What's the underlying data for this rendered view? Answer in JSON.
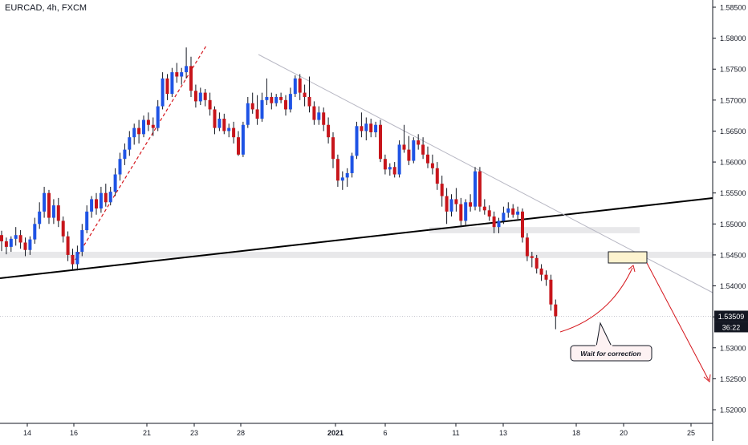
{
  "header": {
    "title": "EURCAD, 4h, FXCM"
  },
  "chart_data": {
    "type": "candlestick",
    "title": "EURCAD, 4h, FXCM",
    "ylim": [
      1.5175,
      1.5875
    ],
    "y_ticks": [
      "1.58500",
      "1.58000",
      "1.57500",
      "1.57000",
      "1.56500",
      "1.56000",
      "1.55500",
      "1.55000",
      "1.54500",
      "1.54000",
      "1.53500",
      "1.53000",
      "1.52500",
      "1.52000"
    ],
    "x_ticks": [
      "14",
      "16",
      "21",
      "23",
      "28",
      "2021",
      "6",
      "11",
      "13",
      "18",
      "20",
      "25"
    ],
    "last_price": {
      "value": "1.53509",
      "countdown": "36:22"
    },
    "annotation": "Wait for correction",
    "colors": {
      "up": "#1e53e5",
      "down": "#c7151b",
      "text": "#131722",
      "trend": "#000000",
      "arrow": "#d5161c"
    },
    "candles": [
      [
        1.5482,
        1.5489,
        1.5456,
        1.5472
      ],
      [
        1.5472,
        1.5478,
        1.5451,
        1.5463
      ],
      [
        1.5463,
        1.548,
        1.5455,
        1.5476
      ],
      [
        1.5476,
        1.5495,
        1.5465,
        1.5482
      ],
      [
        1.5482,
        1.549,
        1.546,
        1.547
      ],
      [
        1.547,
        1.5478,
        1.5448,
        1.5458
      ],
      [
        1.5458,
        1.548,
        1.545,
        1.5475
      ],
      [
        1.5475,
        1.551,
        1.5468,
        1.55
      ],
      [
        1.55,
        1.5535,
        1.5492,
        1.552
      ],
      [
        1.552,
        1.556,
        1.551,
        1.555
      ],
      [
        1.555,
        1.5555,
        1.55,
        1.551
      ],
      [
        1.551,
        1.554,
        1.55,
        1.553
      ],
      [
        1.553,
        1.5542,
        1.5495,
        1.5505
      ],
      [
        1.5505,
        1.5512,
        1.547,
        1.548
      ],
      [
        1.548,
        1.5488,
        1.544,
        1.545
      ],
      [
        1.545,
        1.546,
        1.5425,
        1.5435
      ],
      [
        1.5435,
        1.5465,
        1.5425,
        1.5455
      ],
      [
        1.5455,
        1.55,
        1.5448,
        1.549
      ],
      [
        1.549,
        1.553,
        1.5485,
        1.552
      ],
      [
        1.552,
        1.5545,
        1.551,
        1.554
      ],
      [
        1.554,
        1.555,
        1.5515,
        1.5525
      ],
      [
        1.5525,
        1.556,
        1.5518,
        1.555
      ],
      [
        1.555,
        1.5565,
        1.5528,
        1.5535
      ],
      [
        1.5535,
        1.556,
        1.553,
        1.5552
      ],
      [
        1.5552,
        1.559,
        1.5545,
        1.558
      ],
      [
        1.558,
        1.5615,
        1.557,
        1.5605
      ],
      [
        1.5605,
        1.563,
        1.5595,
        1.562
      ],
      [
        1.562,
        1.565,
        1.561,
        1.564
      ],
      [
        1.564,
        1.5662,
        1.5628,
        1.5655
      ],
      [
        1.5655,
        1.5668,
        1.563,
        1.5645
      ],
      [
        1.5645,
        1.5675,
        1.564,
        1.5668
      ],
      [
        1.5668,
        1.568,
        1.565,
        1.566
      ],
      [
        1.566,
        1.5672,
        1.5642,
        1.5655
      ],
      [
        1.5655,
        1.57,
        1.565,
        1.569
      ],
      [
        1.569,
        1.5745,
        1.5685,
        1.5735
      ],
      [
        1.5735,
        1.5742,
        1.57,
        1.571
      ],
      [
        1.571,
        1.5752,
        1.5705,
        1.5745
      ],
      [
        1.5745,
        1.576,
        1.5728,
        1.5738
      ],
      [
        1.5738,
        1.5752,
        1.5725,
        1.5745
      ],
      [
        1.5745,
        1.5785,
        1.5735,
        1.5755
      ],
      [
        1.5755,
        1.577,
        1.5705,
        1.5715
      ],
      [
        1.5715,
        1.5725,
        1.5688,
        1.5698
      ],
      [
        1.5698,
        1.572,
        1.5692,
        1.5712
      ],
      [
        1.5712,
        1.5718,
        1.569,
        1.57
      ],
      [
        1.57,
        1.5712,
        1.5675,
        1.5685
      ],
      [
        1.5685,
        1.569,
        1.5645,
        1.5655
      ],
      [
        1.5655,
        1.568,
        1.565,
        1.567
      ],
      [
        1.567,
        1.5678,
        1.5645,
        1.565
      ],
      [
        1.565,
        1.5662,
        1.564,
        1.5655
      ],
      [
        1.5655,
        1.5665,
        1.563,
        1.564
      ],
      [
        1.564,
        1.565,
        1.561,
        1.5612
      ],
      [
        1.5612,
        1.5665,
        1.5608,
        1.566
      ],
      [
        1.566,
        1.5705,
        1.5655,
        1.5695
      ],
      [
        1.5695,
        1.5712,
        1.5678,
        1.5685
      ],
      [
        1.5685,
        1.5708,
        1.566,
        1.567
      ],
      [
        1.567,
        1.5712,
        1.5665,
        1.57
      ],
      [
        1.57,
        1.5735,
        1.5692,
        1.5705
      ],
      [
        1.5705,
        1.5712,
        1.5685,
        1.5695
      ],
      [
        1.5695,
        1.571,
        1.569,
        1.5705
      ],
      [
        1.5705,
        1.5712,
        1.5695,
        1.57
      ],
      [
        1.57,
        1.5708,
        1.5675,
        1.5685
      ],
      [
        1.5685,
        1.572,
        1.568,
        1.571
      ],
      [
        1.571,
        1.574,
        1.5705,
        1.5735
      ],
      [
        1.5735,
        1.5742,
        1.57,
        1.5712
      ],
      [
        1.5712,
        1.5725,
        1.569,
        1.5705
      ],
      [
        1.5705,
        1.5738,
        1.568,
        1.569
      ],
      [
        1.569,
        1.5698,
        1.566,
        1.5668
      ],
      [
        1.5668,
        1.569,
        1.566,
        1.568
      ],
      [
        1.568,
        1.5688,
        1.565,
        1.566
      ],
      [
        1.566,
        1.5672,
        1.563,
        1.564
      ],
      [
        1.564,
        1.5648,
        1.559,
        1.5605
      ],
      [
        1.5605,
        1.5612,
        1.556,
        1.557
      ],
      [
        1.557,
        1.5585,
        1.5555,
        1.5575
      ],
      [
        1.5575,
        1.559,
        1.556,
        1.5582
      ],
      [
        1.5582,
        1.5615,
        1.5575,
        1.561
      ],
      [
        1.561,
        1.5665,
        1.5605,
        1.5658
      ],
      [
        1.5658,
        1.568,
        1.564,
        1.565
      ],
      [
        1.565,
        1.5672,
        1.5635,
        1.5662
      ],
      [
        1.5662,
        1.567,
        1.564,
        1.5648
      ],
      [
        1.5648,
        1.5665,
        1.564,
        1.566
      ],
      [
        1.566,
        1.5668,
        1.56,
        1.5605
      ],
      [
        1.5605,
        1.5612,
        1.558,
        1.5588
      ],
      [
        1.5588,
        1.5598,
        1.5578,
        1.5592
      ],
      [
        1.5592,
        1.56,
        1.5575,
        1.558
      ],
      [
        1.558,
        1.5635,
        1.5575,
        1.5628
      ],
      [
        1.5628,
        1.566,
        1.5615,
        1.562
      ],
      [
        1.562,
        1.5642,
        1.5595,
        1.5602
      ],
      [
        1.5602,
        1.564,
        1.5598,
        1.5635
      ],
      [
        1.5635,
        1.5645,
        1.562,
        1.5628
      ],
      [
        1.5628,
        1.564,
        1.5605,
        1.5612
      ],
      [
        1.5612,
        1.5625,
        1.559,
        1.5598
      ],
      [
        1.5598,
        1.5612,
        1.558,
        1.559
      ],
      [
        1.559,
        1.56,
        1.5555,
        1.5565
      ],
      [
        1.5565,
        1.5578,
        1.5528,
        1.5545
      ],
      [
        1.5545,
        1.5558,
        1.55,
        1.552
      ],
      [
        1.552,
        1.5548,
        1.5512,
        1.554
      ],
      [
        1.554,
        1.5558,
        1.552,
        1.5532
      ],
      [
        1.5532,
        1.5542,
        1.5495,
        1.5505
      ],
      [
        1.5505,
        1.554,
        1.5498,
        1.5535
      ],
      [
        1.5535,
        1.5548,
        1.552,
        1.5528
      ],
      [
        1.5528,
        1.5592,
        1.5522,
        1.5585
      ],
      [
        1.5585,
        1.5592,
        1.552,
        1.5528
      ],
      [
        1.5528,
        1.554,
        1.5515,
        1.5522
      ],
      [
        1.5522,
        1.553,
        1.5505,
        1.5512
      ],
      [
        1.5512,
        1.552,
        1.5485,
        1.5495
      ],
      [
        1.5495,
        1.551,
        1.5485,
        1.5505
      ],
      [
        1.5505,
        1.5528,
        1.55,
        1.5518
      ],
      [
        1.5518,
        1.5535,
        1.551,
        1.5525
      ],
      [
        1.5525,
        1.5532,
        1.551,
        1.5515
      ],
      [
        1.5515,
        1.5528,
        1.5508,
        1.552
      ],
      [
        1.552,
        1.5525,
        1.547,
        1.5478
      ],
      [
        1.5478,
        1.5485,
        1.544,
        1.5448
      ],
      [
        1.5448,
        1.5455,
        1.543,
        1.5445
      ],
      [
        1.5445,
        1.545,
        1.542,
        1.5428
      ],
      [
        1.5428,
        1.5435,
        1.5408,
        1.5418
      ],
      [
        1.5418,
        1.5425,
        1.54,
        1.541
      ],
      [
        1.541,
        1.5418,
        1.536,
        1.537
      ],
      [
        1.537,
        1.5378,
        1.533,
        1.5351
      ]
    ]
  }
}
